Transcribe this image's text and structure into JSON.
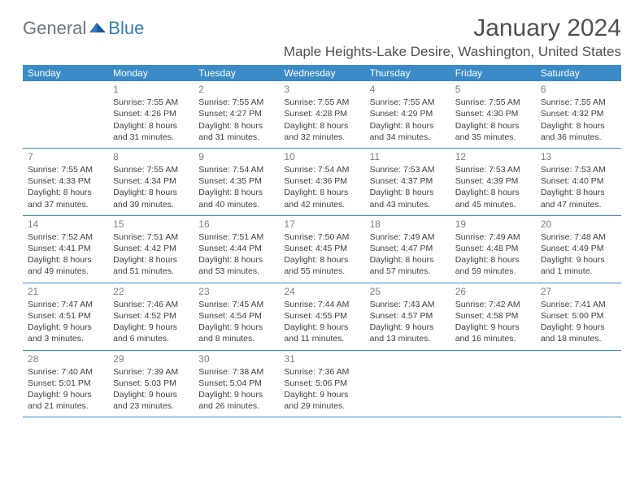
{
  "brand": {
    "part1": "General",
    "part2": "Blue"
  },
  "title": "January 2024",
  "location": "Maple Heights-Lake Desire, Washington, United States",
  "colors": {
    "header_bg": "#3b8bc8",
    "header_text": "#ffffff",
    "border": "#3b8bc8",
    "daynum": "#808080",
    "body_text": "#404040",
    "title_text": "#505050",
    "logo_gray": "#6c757d",
    "logo_blue": "#2f7cbf",
    "page_bg": "#ffffff"
  },
  "weekdays": [
    "Sunday",
    "Monday",
    "Tuesday",
    "Wednesday",
    "Thursday",
    "Friday",
    "Saturday"
  ],
  "weeks": [
    [
      null,
      {
        "n": "1",
        "sr": "7:55 AM",
        "ss": "4:26 PM",
        "d1": "Daylight: 8 hours",
        "d2": "and 31 minutes."
      },
      {
        "n": "2",
        "sr": "7:55 AM",
        "ss": "4:27 PM",
        "d1": "Daylight: 8 hours",
        "d2": "and 31 minutes."
      },
      {
        "n": "3",
        "sr": "7:55 AM",
        "ss": "4:28 PM",
        "d1": "Daylight: 8 hours",
        "d2": "and 32 minutes."
      },
      {
        "n": "4",
        "sr": "7:55 AM",
        "ss": "4:29 PM",
        "d1": "Daylight: 8 hours",
        "d2": "and 34 minutes."
      },
      {
        "n": "5",
        "sr": "7:55 AM",
        "ss": "4:30 PM",
        "d1": "Daylight: 8 hours",
        "d2": "and 35 minutes."
      },
      {
        "n": "6",
        "sr": "7:55 AM",
        "ss": "4:32 PM",
        "d1": "Daylight: 8 hours",
        "d2": "and 36 minutes."
      }
    ],
    [
      {
        "n": "7",
        "sr": "7:55 AM",
        "ss": "4:33 PM",
        "d1": "Daylight: 8 hours",
        "d2": "and 37 minutes."
      },
      {
        "n": "8",
        "sr": "7:55 AM",
        "ss": "4:34 PM",
        "d1": "Daylight: 8 hours",
        "d2": "and 39 minutes."
      },
      {
        "n": "9",
        "sr": "7:54 AM",
        "ss": "4:35 PM",
        "d1": "Daylight: 8 hours",
        "d2": "and 40 minutes."
      },
      {
        "n": "10",
        "sr": "7:54 AM",
        "ss": "4:36 PM",
        "d1": "Daylight: 8 hours",
        "d2": "and 42 minutes."
      },
      {
        "n": "11",
        "sr": "7:53 AM",
        "ss": "4:37 PM",
        "d1": "Daylight: 8 hours",
        "d2": "and 43 minutes."
      },
      {
        "n": "12",
        "sr": "7:53 AM",
        "ss": "4:39 PM",
        "d1": "Daylight: 8 hours",
        "d2": "and 45 minutes."
      },
      {
        "n": "13",
        "sr": "7:53 AM",
        "ss": "4:40 PM",
        "d1": "Daylight: 8 hours",
        "d2": "and 47 minutes."
      }
    ],
    [
      {
        "n": "14",
        "sr": "7:52 AM",
        "ss": "4:41 PM",
        "d1": "Daylight: 8 hours",
        "d2": "and 49 minutes."
      },
      {
        "n": "15",
        "sr": "7:51 AM",
        "ss": "4:42 PM",
        "d1": "Daylight: 8 hours",
        "d2": "and 51 minutes."
      },
      {
        "n": "16",
        "sr": "7:51 AM",
        "ss": "4:44 PM",
        "d1": "Daylight: 8 hours",
        "d2": "and 53 minutes."
      },
      {
        "n": "17",
        "sr": "7:50 AM",
        "ss": "4:45 PM",
        "d1": "Daylight: 8 hours",
        "d2": "and 55 minutes."
      },
      {
        "n": "18",
        "sr": "7:49 AM",
        "ss": "4:47 PM",
        "d1": "Daylight: 8 hours",
        "d2": "and 57 minutes."
      },
      {
        "n": "19",
        "sr": "7:49 AM",
        "ss": "4:48 PM",
        "d1": "Daylight: 8 hours",
        "d2": "and 59 minutes."
      },
      {
        "n": "20",
        "sr": "7:48 AM",
        "ss": "4:49 PM",
        "d1": "Daylight: 9 hours",
        "d2": "and 1 minute."
      }
    ],
    [
      {
        "n": "21",
        "sr": "7:47 AM",
        "ss": "4:51 PM",
        "d1": "Daylight: 9 hours",
        "d2": "and 3 minutes."
      },
      {
        "n": "22",
        "sr": "7:46 AM",
        "ss": "4:52 PM",
        "d1": "Daylight: 9 hours",
        "d2": "and 6 minutes."
      },
      {
        "n": "23",
        "sr": "7:45 AM",
        "ss": "4:54 PM",
        "d1": "Daylight: 9 hours",
        "d2": "and 8 minutes."
      },
      {
        "n": "24",
        "sr": "7:44 AM",
        "ss": "4:55 PM",
        "d1": "Daylight: 9 hours",
        "d2": "and 11 minutes."
      },
      {
        "n": "25",
        "sr": "7:43 AM",
        "ss": "4:57 PM",
        "d1": "Daylight: 9 hours",
        "d2": "and 13 minutes."
      },
      {
        "n": "26",
        "sr": "7:42 AM",
        "ss": "4:58 PM",
        "d1": "Daylight: 9 hours",
        "d2": "and 16 minutes."
      },
      {
        "n": "27",
        "sr": "7:41 AM",
        "ss": "5:00 PM",
        "d1": "Daylight: 9 hours",
        "d2": "and 18 minutes."
      }
    ],
    [
      {
        "n": "28",
        "sr": "7:40 AM",
        "ss": "5:01 PM",
        "d1": "Daylight: 9 hours",
        "d2": "and 21 minutes."
      },
      {
        "n": "29",
        "sr": "7:39 AM",
        "ss": "5:03 PM",
        "d1": "Daylight: 9 hours",
        "d2": "and 23 minutes."
      },
      {
        "n": "30",
        "sr": "7:38 AM",
        "ss": "5:04 PM",
        "d1": "Daylight: 9 hours",
        "d2": "and 26 minutes."
      },
      {
        "n": "31",
        "sr": "7:36 AM",
        "ss": "5:06 PM",
        "d1": "Daylight: 9 hours",
        "d2": "and 29 minutes."
      },
      null,
      null,
      null
    ]
  ],
  "labels": {
    "sunrise_prefix": "Sunrise: ",
    "sunset_prefix": "Sunset: "
  }
}
